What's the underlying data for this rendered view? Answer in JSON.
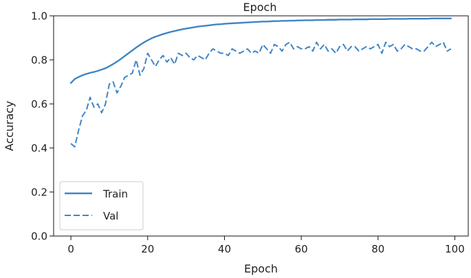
{
  "chart_data": {
    "type": "line",
    "title": "Epoch",
    "xlabel": "Epoch",
    "ylabel": "Accuracy",
    "xlim": [
      -4.5,
      103.5
    ],
    "ylim": [
      0.0,
      1.0
    ],
    "xticks": [
      0,
      20,
      40,
      60,
      80,
      100
    ],
    "yticks": [
      0.0,
      0.2,
      0.4,
      0.6,
      0.8,
      1.0
    ],
    "xtick_labels": [
      "0",
      "20",
      "40",
      "60",
      "80",
      "100"
    ],
    "ytick_labels": [
      "0.0",
      "0.2",
      "0.4",
      "0.6",
      "0.8",
      "1.0"
    ],
    "grid": false,
    "legend_position": "lower-left",
    "color": "#3f85c6",
    "series": [
      {
        "name": "Train",
        "style": "solid",
        "x": [
          0,
          1,
          2,
          3,
          4,
          5,
          6,
          7,
          8,
          9,
          10,
          11,
          12,
          13,
          14,
          15,
          16,
          17,
          18,
          19,
          20,
          21,
          22,
          23,
          24,
          25,
          26,
          27,
          28,
          29,
          30,
          31,
          32,
          33,
          34,
          35,
          36,
          37,
          38,
          39,
          40,
          41,
          42,
          43,
          44,
          45,
          46,
          47,
          48,
          49,
          50,
          51,
          52,
          53,
          54,
          55,
          56,
          57,
          58,
          59,
          60,
          61,
          62,
          63,
          64,
          65,
          66,
          67,
          68,
          69,
          70,
          71,
          72,
          73,
          74,
          75,
          76,
          77,
          78,
          79,
          80,
          81,
          82,
          83,
          84,
          85,
          86,
          87,
          88,
          89,
          90,
          91,
          92,
          93,
          94,
          95,
          96,
          97,
          98,
          99
        ],
        "values": [
          0.695,
          0.713,
          0.722,
          0.73,
          0.736,
          0.741,
          0.745,
          0.75,
          0.756,
          0.762,
          0.771,
          0.781,
          0.792,
          0.804,
          0.817,
          0.83,
          0.843,
          0.856,
          0.868,
          0.879,
          0.889,
          0.898,
          0.905,
          0.911,
          0.917,
          0.922,
          0.927,
          0.931,
          0.935,
          0.939,
          0.942,
          0.945,
          0.948,
          0.951,
          0.953,
          0.955,
          0.957,
          0.959,
          0.961,
          0.962,
          0.964,
          0.965,
          0.966,
          0.967,
          0.968,
          0.969,
          0.97,
          0.971,
          0.972,
          0.973,
          0.974,
          0.974,
          0.975,
          0.976,
          0.976,
          0.977,
          0.977,
          0.978,
          0.978,
          0.979,
          0.979,
          0.98,
          0.98,
          0.98,
          0.981,
          0.981,
          0.981,
          0.982,
          0.982,
          0.982,
          0.983,
          0.983,
          0.983,
          0.983,
          0.984,
          0.984,
          0.984,
          0.984,
          0.985,
          0.985,
          0.985,
          0.985,
          0.985,
          0.986,
          0.986,
          0.986,
          0.986,
          0.986,
          0.987,
          0.987,
          0.987,
          0.987,
          0.987,
          0.987,
          0.988,
          0.988,
          0.988,
          0.988,
          0.988,
          0.988
        ]
      },
      {
        "name": "Val",
        "style": "dashed",
        "x": [
          0,
          1,
          2,
          3,
          4,
          5,
          6,
          7,
          8,
          9,
          10,
          11,
          12,
          13,
          14,
          15,
          16,
          17,
          18,
          19,
          20,
          21,
          22,
          23,
          24,
          25,
          26,
          27,
          28,
          29,
          30,
          31,
          32,
          33,
          34,
          35,
          36,
          37,
          38,
          39,
          40,
          41,
          42,
          43,
          44,
          45,
          46,
          47,
          48,
          49,
          50,
          51,
          52,
          53,
          54,
          55,
          56,
          57,
          58,
          59,
          60,
          61,
          62,
          63,
          64,
          65,
          66,
          67,
          68,
          69,
          70,
          71,
          72,
          73,
          74,
          75,
          76,
          77,
          78,
          79,
          80,
          81,
          82,
          83,
          84,
          85,
          86,
          87,
          88,
          89,
          90,
          91,
          92,
          93,
          94,
          95,
          96,
          97,
          98,
          99
        ],
        "values": [
          0.42,
          0.405,
          0.48,
          0.545,
          0.57,
          0.63,
          0.585,
          0.6,
          0.56,
          0.6,
          0.69,
          0.7,
          0.65,
          0.68,
          0.72,
          0.73,
          0.74,
          0.8,
          0.73,
          0.76,
          0.83,
          0.8,
          0.77,
          0.8,
          0.82,
          0.79,
          0.81,
          0.78,
          0.83,
          0.82,
          0.83,
          0.81,
          0.8,
          0.82,
          0.81,
          0.8,
          0.83,
          0.85,
          0.84,
          0.83,
          0.83,
          0.82,
          0.85,
          0.84,
          0.83,
          0.84,
          0.85,
          0.83,
          0.84,
          0.83,
          0.87,
          0.85,
          0.83,
          0.87,
          0.86,
          0.84,
          0.87,
          0.88,
          0.85,
          0.86,
          0.85,
          0.85,
          0.86,
          0.84,
          0.88,
          0.85,
          0.87,
          0.84,
          0.85,
          0.83,
          0.86,
          0.87,
          0.84,
          0.86,
          0.86,
          0.84,
          0.85,
          0.86,
          0.85,
          0.86,
          0.87,
          0.83,
          0.88,
          0.86,
          0.87,
          0.84,
          0.85,
          0.87,
          0.86,
          0.85,
          0.85,
          0.84,
          0.84,
          0.86,
          0.88,
          0.86,
          0.87,
          0.88,
          0.84,
          0.85
        ]
      }
    ]
  }
}
